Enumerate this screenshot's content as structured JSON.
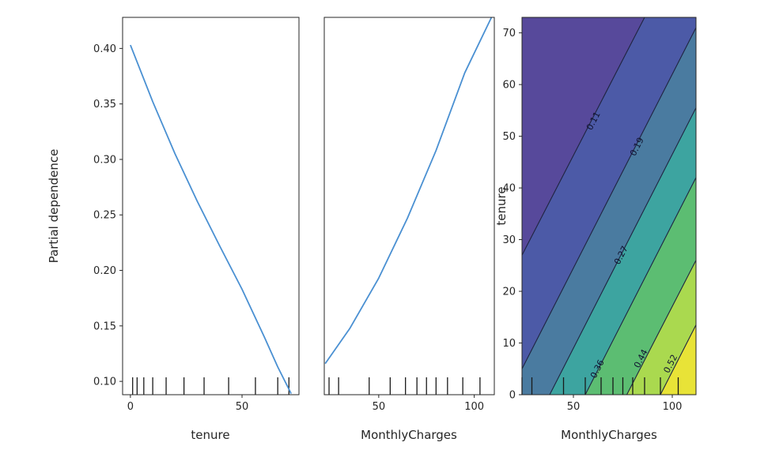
{
  "figure": {
    "background": "#ffffff",
    "line_color": "#4a90d2",
    "axis_color": "#262626",
    "contour_line_color": "#1f2440",
    "contour_label_color": "#10122e",
    "rug_color": "#1a1a1a"
  },
  "chart_data": [
    {
      "type": "line",
      "title": "",
      "xlabel": "tenure",
      "ylabel": "Partial dependence",
      "xlim": [
        -3.5,
        75.5
      ],
      "ylim": [
        0.088,
        0.428
      ],
      "xticks": [
        0,
        50
      ],
      "yticks": [
        0.4,
        0.35,
        0.3,
        0.25,
        0.2,
        0.15,
        0.1
      ],
      "x": [
        0,
        10,
        20,
        30,
        40,
        50,
        60,
        66,
        72
      ],
      "y": [
        0.403,
        0.352,
        0.305,
        0.262,
        0.222,
        0.183,
        0.14,
        0.113,
        0.089
      ],
      "rug_x": [
        1,
        3,
        6,
        10,
        16,
        24,
        33,
        44,
        56,
        66,
        71
      ],
      "grid": false,
      "legend": null
    },
    {
      "type": "line",
      "title": "",
      "xlabel": "MonthlyCharges",
      "ylabel": "",
      "xlim": [
        21.5,
        110.5
      ],
      "ylim": [
        0.088,
        0.428
      ],
      "xticks": [
        50,
        100
      ],
      "yticks": [],
      "x": [
        22,
        35,
        50,
        65,
        80,
        95,
        109
      ],
      "y": [
        0.116,
        0.148,
        0.193,
        0.247,
        0.308,
        0.378,
        0.428
      ],
      "rug_x": [
        24,
        29,
        45,
        56,
        64,
        70,
        75,
        80,
        86,
        94,
        103
      ],
      "grid": false,
      "legend": null
    },
    {
      "type": "contour",
      "title": "",
      "xlabel": "MonthlyCharges",
      "ylabel": "tenure",
      "xlim": [
        24,
        112
      ],
      "ylim": [
        0,
        73
      ],
      "xticks": [
        50,
        100
      ],
      "yticks": [
        0,
        10,
        20,
        30,
        40,
        50,
        60,
        70
      ],
      "levels": [
        0.11,
        0.19,
        0.27,
        0.36,
        0.44,
        0.52
      ],
      "band_colors": [
        "#57499b",
        "#4c5aa7",
        "#4a7ba0",
        "#3da4a0",
        "#5cbd72",
        "#aad94f",
        "#e8e337"
      ],
      "lines": [
        {
          "level": "0.11",
          "from": [
            24,
            27
          ],
          "to": [
            86,
            73
          ],
          "label_at": [
            60,
            53
          ]
        },
        {
          "level": "0.19",
          "from": [
            24,
            5
          ],
          "to": [
            112,
            71
          ],
          "label_at": [
            82,
            48
          ]
        },
        {
          "level": "0.27",
          "from": [
            38,
            0
          ],
          "to": [
            112,
            55.5
          ],
          "label_at": [
            74,
            27
          ]
        },
        {
          "level": "0.36",
          "from": [
            56,
            0
          ],
          "to": [
            112,
            42
          ],
          "label_at": [
            62,
            5
          ]
        },
        {
          "level": "0.44",
          "from": [
            77,
            0
          ],
          "to": [
            112,
            26
          ],
          "label_at": [
            84,
            7
          ]
        },
        {
          "level": "0.52",
          "from": [
            94,
            0
          ],
          "to": [
            112,
            13.5
          ],
          "label_at": [
            99,
            6
          ]
        }
      ],
      "rug_x": [
        24,
        29,
        45,
        56,
        64,
        70,
        75,
        80,
        86,
        94,
        103
      ],
      "grid": false,
      "legend": null
    }
  ]
}
